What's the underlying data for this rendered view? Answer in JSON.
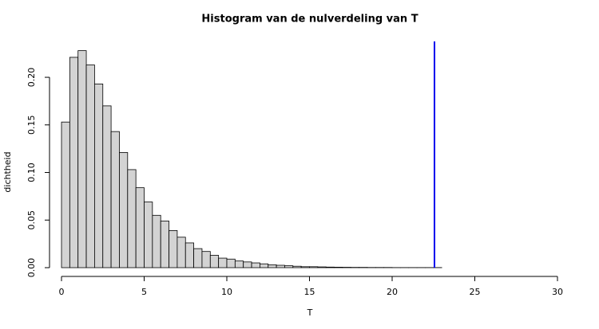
{
  "chart_data": {
    "type": "histogram",
    "title": "Histogram van de nulverdeling van T",
    "x_label": "T",
    "y_label": "dichtheid",
    "bins": [
      0,
      0.5,
      1,
      1.5,
      2,
      2.5,
      3,
      3.5,
      4,
      4.5,
      5,
      5.5,
      6,
      6.5,
      7,
      7.5,
      8,
      8.5,
      9,
      9.5,
      10,
      10.5,
      11,
      11.5,
      12,
      12.5,
      13,
      13.5,
      14,
      14.5,
      15,
      15.5,
      16,
      16.5,
      17,
      17.5,
      18,
      18.5,
      19,
      19.5,
      20,
      20.5,
      21,
      21.5,
      22,
      22.5,
      23,
      23.5,
      24,
      24.5,
      25,
      25.5,
      26,
      26.5,
      27,
      27.5,
      28,
      28.5,
      29,
      29.5,
      30
    ],
    "values": [
      0.153,
      0.221,
      0.228,
      0.213,
      0.193,
      0.17,
      0.143,
      0.121,
      0.103,
      0.084,
      0.069,
      0.055,
      0.049,
      0.039,
      0.032,
      0.026,
      0.02,
      0.017,
      0.013,
      0.01,
      0.009,
      0.007,
      0.006,
      0.005,
      0.004,
      0.003,
      0.0025,
      0.002,
      0.0015,
      0.001,
      0.001,
      0.0008,
      0.0006,
      0.0005,
      0.0004,
      0.0003,
      0.0003,
      0.0002,
      0.0002,
      0.0002,
      0.0001,
      0.0001,
      0.0001,
      0.0001,
      0.0001,
      0.0001,
      0,
      0,
      0,
      0,
      0,
      0,
      0,
      0,
      0,
      0,
      0,
      0,
      0,
      0
    ],
    "color": "#d3d3d3",
    "vline": {
      "x": 22.56,
      "color": "#0000ee"
    },
    "xlim": [
      0,
      30
    ],
    "xticks": [
      0,
      5,
      10,
      15,
      20,
      25,
      30
    ],
    "ylim": [
      0,
      0.2377
    ],
    "yticks": [
      {
        "value": 0,
        "label": "0.00"
      },
      {
        "value": 0.05,
        "label": "0.05"
      },
      {
        "value": 0.1,
        "label": "0.10"
      },
      {
        "value": 0.15,
        "label": "0.15"
      },
      {
        "value": 0.2,
        "label": "0.20"
      }
    ]
  }
}
